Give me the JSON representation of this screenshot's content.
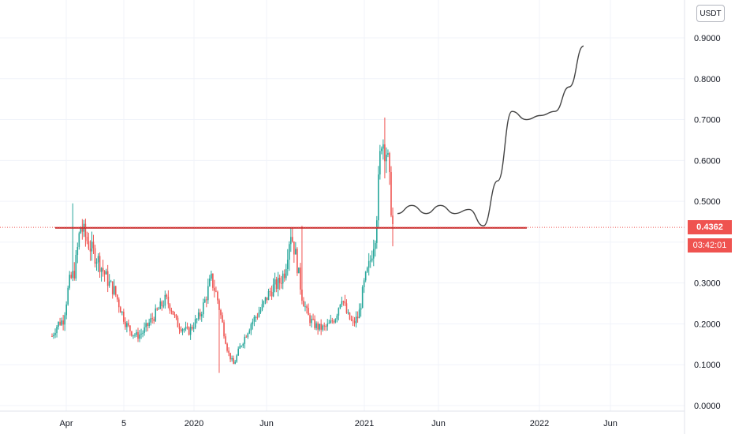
{
  "chart_data": {
    "type": "candlestick",
    "currency": "USDT",
    "last_price": "0.4362",
    "countdown": "03:42:01",
    "ylim": [
      0,
      0.95
    ],
    "y_ticks": [
      "0.9000",
      "0.8000",
      "0.7000",
      "0.6000",
      "0.5000",
      "0.4000",
      "0.3000",
      "0.2000",
      "0.1000",
      "0.0000"
    ],
    "x_ticks": [
      "Apr",
      "5",
      "2020",
      "Jun",
      "2021",
      "Jun",
      "2022",
      "Jun"
    ],
    "price_history_close": [
      0.17,
      0.2,
      0.21,
      0.3,
      0.33,
      0.44,
      0.41,
      0.38,
      0.36,
      0.33,
      0.3,
      0.28,
      0.24,
      0.2,
      0.18,
      0.17,
      0.18,
      0.2,
      0.22,
      0.24,
      0.26,
      0.24,
      0.2,
      0.19,
      0.18,
      0.2,
      0.22,
      0.26,
      0.31,
      0.27,
      0.2,
      0.13,
      0.1,
      0.14,
      0.17,
      0.2,
      0.22,
      0.24,
      0.27,
      0.29,
      0.3,
      0.33,
      0.43,
      0.36,
      0.27,
      0.22,
      0.2,
      0.19,
      0.19,
      0.2,
      0.22,
      0.27,
      0.22,
      0.2,
      0.22,
      0.3,
      0.35,
      0.43,
      0.66,
      0.62,
      0.44
    ],
    "support_level": 0.435,
    "projection_path": [
      0.47,
      0.49,
      0.47,
      0.49,
      0.47,
      0.48,
      0.44,
      0.55,
      0.72,
      0.7,
      0.71,
      0.72,
      0.78,
      0.88
    ]
  },
  "colors": {
    "up": "#26a69a",
    "down": "#ef5350",
    "support": "#c62828",
    "projection": "#444444",
    "grid": "#f0f3fa",
    "axis_text": "#131722"
  }
}
